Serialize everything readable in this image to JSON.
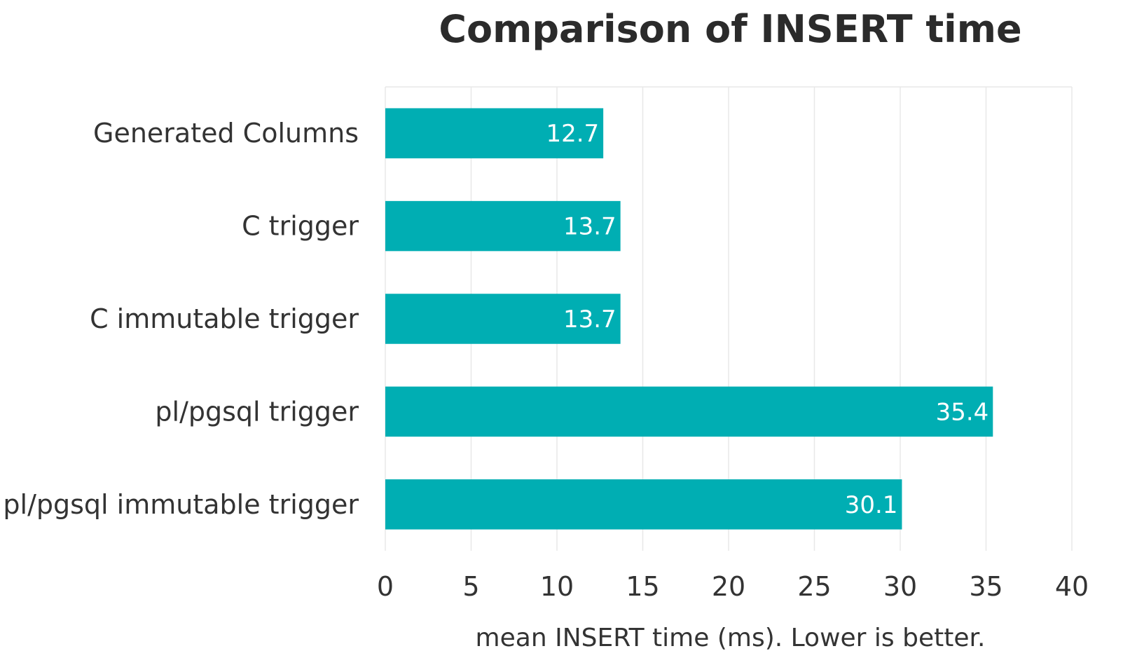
{
  "chart_data": {
    "type": "bar",
    "orientation": "horizontal",
    "title": "Comparison of INSERT time",
    "xlabel": "mean INSERT time (ms). Lower is better.",
    "ylabel": "",
    "categories": [
      "Generated Columns",
      "C trigger",
      "C immutable trigger",
      "pl/pgsql trigger",
      "pl/pgsql immutable trigger"
    ],
    "values": [
      12.7,
      13.7,
      13.7,
      35.4,
      30.1
    ],
    "data_labels": [
      "12.7",
      "13.7",
      "13.7",
      "35.4",
      "30.1"
    ],
    "xlim": [
      0,
      40
    ],
    "ticks": [
      0,
      5,
      10,
      15,
      20,
      25,
      30,
      35,
      40
    ],
    "tick_labels": [
      "0",
      "5",
      "10",
      "15",
      "20",
      "25",
      "30",
      "35",
      "40"
    ],
    "grid": true,
    "legend": "none",
    "bar_color": "#00aeb3",
    "grid_color": "#e8e8e8"
  }
}
